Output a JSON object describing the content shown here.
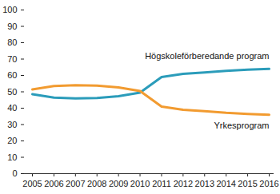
{
  "chart_data": {
    "type": "line",
    "x": [
      2005,
      2006,
      2007,
      2008,
      2009,
      2010,
      2011,
      2012,
      2013,
      2014,
      2015,
      2016
    ],
    "series": [
      {
        "name": "Högskoleförberedande program",
        "color": "#2b9cba",
        "values": [
          48.5,
          46.5,
          46,
          46.2,
          47.3,
          49.5,
          59,
          61,
          61.8,
          62.8,
          63.5,
          64
        ]
      },
      {
        "name": "Yrkesprogram",
        "color": "#f29b30",
        "values": [
          51.5,
          53.5,
          54,
          53.8,
          52.7,
          50.5,
          41,
          39,
          38.2,
          37.2,
          36.5,
          36
        ]
      }
    ],
    "xlim": [
      2005,
      2016
    ],
    "xticks": [
      2005,
      2006,
      2007,
      2008,
      2009,
      2010,
      2011,
      2012,
      2013,
      2014,
      2015,
      2016
    ],
    "ylim": [
      0,
      100
    ],
    "yticks": [
      0,
      10,
      20,
      30,
      40,
      50,
      60,
      70,
      80,
      90,
      100
    ],
    "grid": false
  }
}
